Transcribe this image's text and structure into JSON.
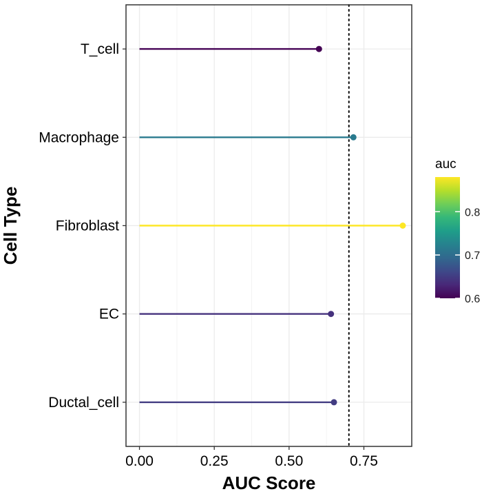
{
  "chart_data": {
    "type": "lollipop",
    "orientation": "horizontal",
    "categories": [
      "T_cell",
      "Macrophage",
      "Fibroblast",
      "EC",
      "Ductal_cell"
    ],
    "values": [
      0.6,
      0.715,
      0.88,
      0.64,
      0.65
    ],
    "xlabel": "AUC Score",
    "ylabel": "Cell Type",
    "xlim": [
      -0.045,
      0.91
    ],
    "x_ticks": [
      "0.00",
      "0.25",
      "0.50",
      "0.75"
    ],
    "x_tick_values": [
      0,
      0.25,
      0.5,
      0.75
    ],
    "reference_line": {
      "x": 0.7,
      "style": "dotted"
    },
    "grid": true,
    "color_scale": {
      "name": "viridis",
      "domain": [
        0.6,
        0.88
      ],
      "stops": [
        "#440154",
        "#482878",
        "#3e4989",
        "#31688e",
        "#26828e",
        "#1f9e89",
        "#35b779",
        "#6ece58",
        "#b5de2b",
        "#fde725"
      ]
    },
    "legend": {
      "title": "auc",
      "ticks": [
        "0.6",
        "0.7",
        "0.8"
      ],
      "tick_values": [
        0.6,
        0.7,
        0.8
      ],
      "placement": "right"
    }
  }
}
